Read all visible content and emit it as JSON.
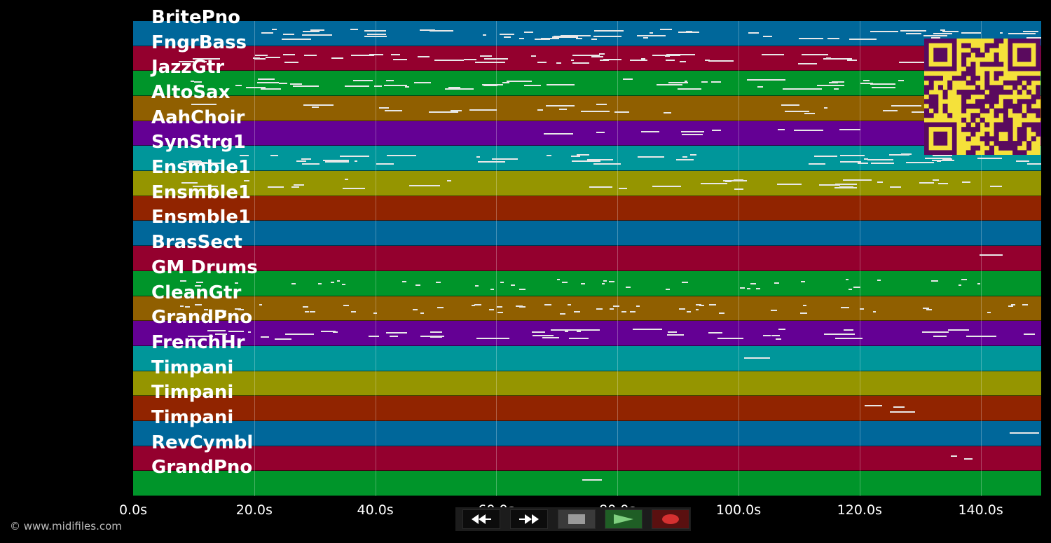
{
  "tracks": [
    {
      "name": "BritePno",
      "color": "#00679a"
    },
    {
      "name": "FngrBass",
      "color": "#94002e"
    },
    {
      "name": "JazzGtr",
      "color": "#00952a"
    },
    {
      "name": "AltoSax",
      "color": "#905f00"
    },
    {
      "name": "AahChoir",
      "color": "#640094"
    },
    {
      "name": "SynStrg1",
      "color": "#00969a"
    },
    {
      "name": "Ensmble1",
      "color": "#959500"
    },
    {
      "name": "Ensmble1",
      "color": "#912400"
    },
    {
      "name": "Ensmble1",
      "color": "#00679a"
    },
    {
      "name": "BrasSect",
      "color": "#94002e"
    },
    {
      "name": "GM Drums",
      "color": "#00952a"
    },
    {
      "name": "CleanGtr",
      "color": "#905f00"
    },
    {
      "name": "GrandPno",
      "color": "#640094"
    },
    {
      "name": "FrenchHr",
      "color": "#00969a"
    },
    {
      "name": "Timpani",
      "color": "#959500"
    },
    {
      "name": "Timpani",
      "color": "#912400"
    },
    {
      "name": "Timpani",
      "color": "#00679a"
    },
    {
      "name": "RevCymbl",
      "color": "#94002e"
    },
    {
      "name": "GrandPno",
      "color": "#00952a"
    }
  ],
  "time_axis": {
    "ticks": [
      "0.0s",
      "20.0s",
      "40.0s",
      "60.0s",
      "80.0s",
      "100.0s",
      "120.0s",
      "140.0s"
    ],
    "max_seconds": 150
  },
  "copyright": "© www.midifiles.com",
  "transport": {
    "rewind": "rewind-icon",
    "fast_forward": "fast-forward-icon",
    "stop": "stop-icon",
    "play": "play-icon",
    "record": "record-icon"
  },
  "qr_code": {
    "color": "#5a0a5e",
    "background": "#f5e13a"
  }
}
